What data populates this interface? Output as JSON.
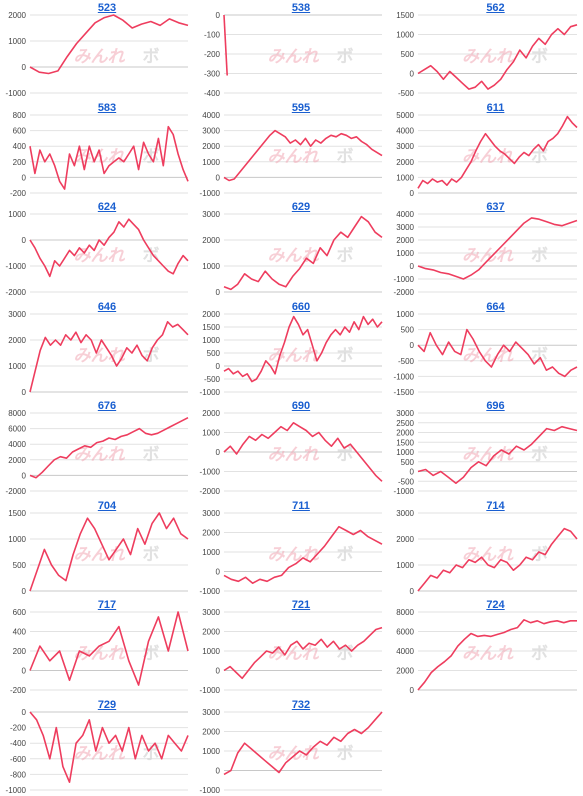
{
  "watermark": {
    "main": "みんれ",
    "sub": "ボ"
  },
  "chart_data": [
    {
      "type": "line",
      "title": "523",
      "yticks": [
        2000,
        1000,
        0,
        -1000
      ],
      "ylim": [
        -1000,
        2000
      ],
      "x_end": 12,
      "values": [
        0,
        -200,
        -250,
        -150,
        400,
        900,
        1300,
        1700,
        1900,
        2000,
        1800,
        1500,
        1650,
        1750,
        1600,
        1850,
        1700,
        1600
      ]
    },
    {
      "type": "line",
      "title": "538",
      "yticks": [
        0,
        -100,
        -200,
        -300,
        -400
      ],
      "ylim": [
        -400,
        0
      ],
      "x_end": 12,
      "values": [
        0,
        -310
      ]
    },
    {
      "type": "line",
      "title": "562",
      "yticks": [
        1500,
        1000,
        500,
        0,
        -500
      ],
      "ylim": [
        -500,
        1500
      ],
      "x_end": 12,
      "values": [
        0,
        100,
        200,
        50,
        -150,
        50,
        -100,
        -250,
        -400,
        -350,
        -200,
        -400,
        -300,
        -150,
        100,
        300,
        600,
        400,
        700,
        900,
        750,
        1000,
        1150,
        1000,
        1200,
        1250
      ]
    },
    {
      "type": "line",
      "title": "583",
      "yticks": [
        800,
        600,
        400,
        200,
        0,
        -200
      ],
      "ylim": [
        -200,
        800
      ],
      "x_end": 12,
      "values": [
        400,
        50,
        350,
        200,
        300,
        150,
        -50,
        -150,
        300,
        150,
        400,
        100,
        400,
        200,
        350,
        50,
        150,
        200,
        250,
        200,
        300,
        400,
        100,
        450,
        300,
        200,
        500,
        150,
        650,
        550,
        300,
        100,
        -50
      ]
    },
    {
      "type": "line",
      "title": "595",
      "yticks": [
        4000,
        3000,
        2000,
        1000,
        0,
        -1000
      ],
      "ylim": [
        -1000,
        4000
      ],
      "x_end": 12,
      "values": [
        0,
        -200,
        -100,
        300,
        700,
        1100,
        1500,
        1900,
        2300,
        2700,
        3000,
        2800,
        2600,
        2200,
        2400,
        2100,
        2500,
        2000,
        2400,
        2200,
        2500,
        2700,
        2600,
        2800,
        2700,
        2500,
        2600,
        2300,
        2100,
        1800,
        1600,
        1400
      ]
    },
    {
      "type": "line",
      "title": "611",
      "yticks": [
        5000,
        4000,
        3000,
        2000,
        1000,
        0
      ],
      "ylim": [
        0,
        5000
      ],
      "x_end": 12,
      "values": [
        300,
        800,
        600,
        900,
        700,
        800,
        500,
        900,
        700,
        1000,
        1500,
        2000,
        2700,
        3300,
        3800,
        3400,
        3000,
        2700,
        2500,
        2200,
        1900,
        2300,
        2600,
        2400,
        2800,
        3100,
        2700,
        3300,
        3500,
        3800,
        4300,
        4900,
        4500,
        4200
      ]
    },
    {
      "type": "line",
      "title": "624",
      "yticks": [
        1000,
        0,
        -1000,
        -2000
      ],
      "ylim": [
        -2000,
        1000
      ],
      "x_end": 12,
      "values": [
        0,
        -300,
        -700,
        -1000,
        -1400,
        -800,
        -1000,
        -700,
        -400,
        -600,
        -300,
        -500,
        -200,
        -400,
        0,
        -200,
        100,
        300,
        700,
        500,
        800,
        600,
        400,
        0,
        -300,
        -600,
        -800,
        -1000,
        -1200,
        -1300,
        -900,
        -600,
        -800
      ]
    },
    {
      "type": "line",
      "title": "629",
      "yticks": [
        3000,
        2000,
        1000,
        0
      ],
      "ylim": [
        0,
        3000
      ],
      "x_end": 12,
      "values": [
        200,
        100,
        300,
        700,
        500,
        400,
        800,
        500,
        300,
        200,
        600,
        900,
        1300,
        1100,
        1700,
        1400,
        2000,
        2300,
        2100,
        2500,
        2900,
        2700,
        2300,
        2100
      ]
    },
    {
      "type": "line",
      "title": "637",
      "yticks": [
        4000,
        3000,
        2000,
        1000,
        0,
        -1000,
        -2000
      ],
      "ylim": [
        -2000,
        4000
      ],
      "x_end": 12,
      "values": [
        0,
        -200,
        -300,
        -500,
        -600,
        -800,
        -1000,
        -700,
        -300,
        300,
        900,
        1500,
        2100,
        2700,
        3300,
        3700,
        3600,
        3400,
        3200,
        3100,
        3300,
        3500
      ]
    },
    {
      "type": "line",
      "title": "646",
      "yticks": [
        3000,
        2000,
        1000,
        0
      ],
      "ylim": [
        0,
        3000
      ],
      "x_end": 12,
      "values": [
        0,
        800,
        1600,
        2100,
        1800,
        2000,
        1800,
        2200,
        2000,
        2300,
        1900,
        2200,
        2000,
        1500,
        2000,
        1700,
        1400,
        1000,
        1300,
        1700,
        1500,
        1800,
        1400,
        1200,
        1700,
        2000,
        2200,
        2700,
        2500,
        2600,
        2400,
        2200
      ]
    },
    {
      "type": "line",
      "title": "660",
      "yticks": [
        2000,
        1500,
        1000,
        500,
        0,
        -500,
        -1000
      ],
      "ylim": [
        -1000,
        2000
      ],
      "x_end": 12,
      "values": [
        -200,
        -100,
        -300,
        -200,
        -400,
        -300,
        -600,
        -500,
        -200,
        200,
        0,
        -300,
        400,
        900,
        1500,
        1900,
        1600,
        1200,
        1400,
        800,
        200,
        500,
        900,
        1200,
        1400,
        1200,
        1500,
        1300,
        1700,
        1400,
        1900,
        1600,
        1800,
        1500,
        1700
      ]
    },
    {
      "type": "line",
      "title": "664",
      "yticks": [
        1000,
        500,
        0,
        -500,
        -1000,
        -1500
      ],
      "ylim": [
        -1500,
        1000
      ],
      "x_end": 12,
      "values": [
        0,
        -200,
        400,
        0,
        -300,
        100,
        -200,
        -300,
        500,
        200,
        -200,
        -500,
        -700,
        -300,
        0,
        -200,
        100,
        -100,
        -300,
        -600,
        -400,
        -800,
        -700,
        -900,
        -1000,
        -800,
        -700
      ]
    },
    {
      "type": "line",
      "title": "676",
      "yticks": [
        8000,
        6000,
        4000,
        2000,
        0,
        -2000
      ],
      "ylim": [
        -2000,
        8000
      ],
      "x_end": 12,
      "values": [
        0,
        -300,
        400,
        1200,
        2000,
        2400,
        2200,
        3000,
        3400,
        3800,
        3600,
        4200,
        4400,
        4800,
        4600,
        5000,
        5200,
        5600,
        6000,
        5400,
        5200,
        5400,
        5800,
        6200,
        6600,
        7000,
        7400
      ]
    },
    {
      "type": "line",
      "title": "690",
      "yticks": [
        2000,
        1000,
        0,
        -1000,
        -2000
      ],
      "ylim": [
        -2000,
        2000
      ],
      "x_end": 12,
      "values": [
        0,
        300,
        -100,
        400,
        800,
        600,
        900,
        700,
        1000,
        1300,
        1100,
        1500,
        1300,
        1100,
        800,
        1000,
        600,
        300,
        700,
        200,
        400,
        0,
        -400,
        -800,
        -1200,
        -1500
      ]
    },
    {
      "type": "line",
      "title": "696",
      "yticks": [
        3000,
        2500,
        2000,
        1500,
        1000,
        500,
        0,
        -500,
        -1000
      ],
      "ylim": [
        -1000,
        3000
      ],
      "x_end": 12,
      "values": [
        0,
        100,
        -200,
        0,
        -300,
        -600,
        -300,
        200,
        500,
        300,
        800,
        1100,
        900,
        1300,
        1100,
        1400,
        1800,
        2200,
        2100,
        2300,
        2200,
        2100
      ]
    },
    {
      "type": "line",
      "title": "704",
      "yticks": [
        1500,
        1000,
        500,
        0
      ],
      "ylim": [
        0,
        1500
      ],
      "x_end": 12,
      "values": [
        0,
        400,
        800,
        500,
        300,
        200,
        700,
        1100,
        1400,
        1200,
        900,
        600,
        800,
        1000,
        700,
        1200,
        900,
        1300,
        1500,
        1200,
        1400,
        1100,
        1000
      ]
    },
    {
      "type": "line",
      "title": "711",
      "yticks": [
        3000,
        2000,
        1000,
        0,
        -1000
      ],
      "ylim": [
        -1000,
        3000
      ],
      "x_end": 12,
      "values": [
        -200,
        -400,
        -500,
        -300,
        -600,
        -400,
        -500,
        -300,
        -200,
        200,
        400,
        700,
        500,
        900,
        1300,
        1800,
        2300,
        2100,
        1900,
        2100,
        1800,
        1600,
        1400
      ]
    },
    {
      "type": "line",
      "title": "714",
      "yticks": [
        3000,
        2000,
        1000,
        0
      ],
      "ylim": [
        0,
        3000
      ],
      "x_end": 12,
      "values": [
        0,
        300,
        600,
        500,
        800,
        700,
        1000,
        900,
        1200,
        1100,
        1300,
        1000,
        900,
        1200,
        1100,
        800,
        1000,
        1300,
        1200,
        1500,
        1400,
        1800,
        2100,
        2400,
        2300,
        2000
      ]
    },
    {
      "type": "line",
      "title": "717",
      "yticks": [
        600,
        400,
        200,
        0,
        -200
      ],
      "ylim": [
        -200,
        600
      ],
      "x_end": 12,
      "values": [
        0,
        250,
        100,
        200,
        -100,
        200,
        150,
        250,
        300,
        450,
        100,
        -150,
        300,
        550,
        200,
        600,
        200
      ]
    },
    {
      "type": "line",
      "title": "721",
      "yticks": [
        3000,
        2000,
        1000,
        0,
        -1000
      ],
      "ylim": [
        -1000,
        3000
      ],
      "x_end": 12,
      "values": [
        0,
        200,
        -100,
        -400,
        0,
        400,
        700,
        1000,
        900,
        1200,
        800,
        1300,
        1500,
        1100,
        1400,
        1300,
        1600,
        1200,
        1500,
        1100,
        1300,
        1000,
        1300,
        1500,
        1800,
        2100,
        2200
      ]
    },
    {
      "type": "line",
      "title": "724",
      "yticks": [
        8000,
        6000,
        4000,
        2000,
        0
      ],
      "ylim": [
        0,
        8000
      ],
      "x_end": 12,
      "values": [
        0,
        800,
        1800,
        2400,
        2900,
        3500,
        4500,
        5200,
        5800,
        5500,
        5600,
        5500,
        5700,
        5900,
        6200,
        6400,
        7200,
        6900,
        7100,
        6800,
        7000,
        7100,
        6900,
        7100,
        7100
      ]
    },
    {
      "type": "line",
      "title": "729",
      "yticks": [
        0,
        -200,
        -400,
        -600,
        -800,
        -1000
      ],
      "ylim": [
        -1000,
        0
      ],
      "x_end": 12,
      "values": [
        0,
        -100,
        -300,
        -600,
        -200,
        -700,
        -900,
        -400,
        -300,
        -100,
        -500,
        -200,
        -400,
        -300,
        -500,
        -200,
        -600,
        -300,
        -500,
        -400,
        -600,
        -300,
        -400,
        -500,
        -300
      ]
    },
    {
      "type": "line",
      "title": "732",
      "yticks": [
        3000,
        2000,
        1000,
        0,
        -1000
      ],
      "ylim": [
        -1000,
        3000
      ],
      "x_end": 12,
      "values": [
        -200,
        0,
        900,
        1400,
        1100,
        800,
        500,
        200,
        -100,
        400,
        700,
        1000,
        800,
        1200,
        1500,
        1300,
        1700,
        1500,
        1900,
        2100,
        1900,
        2200,
        2600,
        3000
      ]
    }
  ]
}
